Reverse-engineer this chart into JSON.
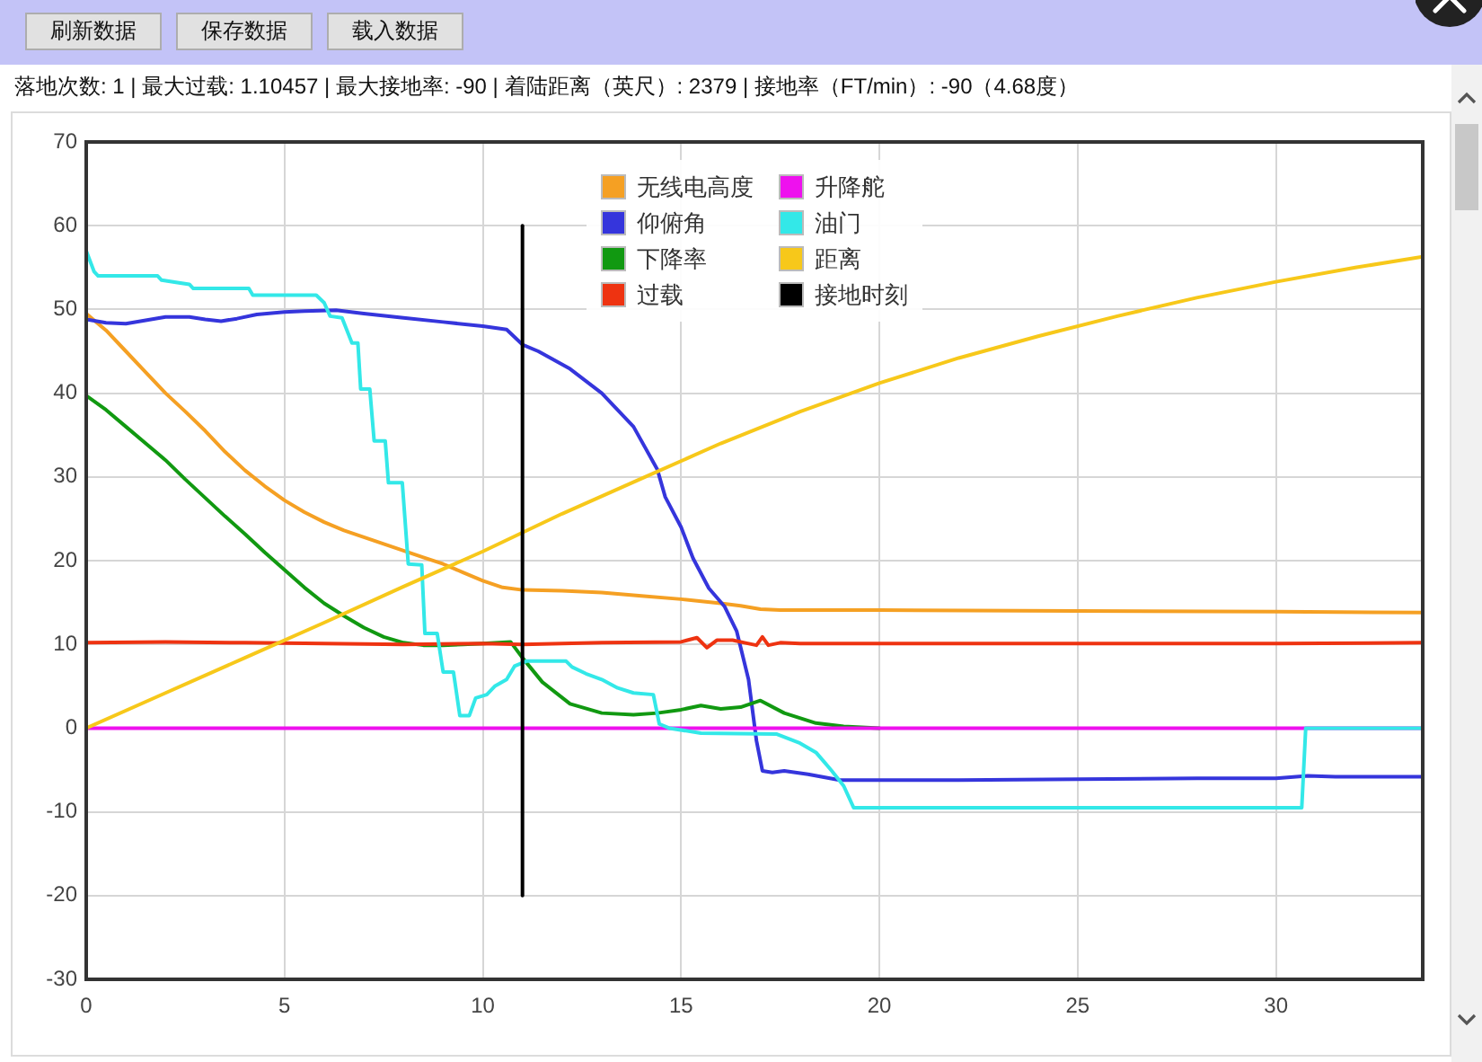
{
  "chart_data": {
    "type": "line",
    "title": "落地次数: 1 | 最大过载: 1.10457 | 最大接地率: -90 | 着陆距离（英尺）: 2379 | 接地率（FT/min）: -90（4.68度）",
    "annotations": [
      "刷新数据",
      "保存数据",
      "载入数据"
    ],
    "xlim": [
      0,
      33.7
    ],
    "xticks": [
      0,
      5,
      10,
      15,
      20,
      25,
      30
    ],
    "ylim": [
      -30,
      70
    ],
    "yticks": [
      -30,
      -20,
      -10,
      0,
      10,
      20,
      30,
      40,
      50,
      60,
      70
    ],
    "grid": true,
    "legend": "top",
    "marker": "none",
    "series": [
      {
        "name": "无线电高度",
        "color": "#f5a023",
        "x": [
          0,
          0.5,
          1,
          1.5,
          2,
          2.5,
          3,
          3.5,
          4,
          4.5,
          5,
          5.5,
          6,
          6.5,
          7,
          7.5,
          8,
          8.5,
          9,
          9.5,
          10,
          10.5,
          11,
          12,
          13,
          14,
          15,
          16,
          16.5,
          17,
          17.5,
          20,
          25,
          30,
          33.7
        ],
        "values": [
          49.5,
          47.5,
          45,
          42.5,
          40,
          37.8,
          35.5,
          33,
          30.8,
          28.9,
          27.2,
          25.8,
          24.6,
          23.6,
          22.8,
          22,
          21.2,
          20.4,
          19.6,
          18.6,
          17.6,
          16.8,
          16.5,
          16.4,
          16.2,
          15.8,
          15.4,
          14.9,
          14.6,
          14.2,
          14.1,
          14.1,
          14,
          13.9,
          13.8
        ]
      },
      {
        "name": "仰俯角",
        "color": "#3535dc",
        "x": [
          0,
          0.5,
          1,
          1.5,
          2,
          2.6,
          3,
          3.4,
          3.8,
          4.3,
          5,
          5.5,
          6.3,
          7,
          8,
          9,
          10,
          10.6,
          11,
          11.4,
          12.2,
          13,
          13.3,
          13.8,
          14.4,
          14.6,
          15,
          15.3,
          15.7,
          16.1,
          16.4,
          16.7,
          16.9,
          17.05,
          17.3,
          17.6,
          18.2,
          19,
          20,
          22,
          25,
          28,
          30,
          30.8,
          31.5,
          33.7
        ],
        "values": [
          48.8,
          48.4,
          48.3,
          48.7,
          49.1,
          49.1,
          48.8,
          48.6,
          48.9,
          49.4,
          49.7,
          49.8,
          49.9,
          49.5,
          49,
          48.5,
          48,
          47.6,
          45.8,
          45,
          42.9,
          40,
          38.5,
          36,
          30.9,
          27.6,
          24,
          20.3,
          16.7,
          14.5,
          11.6,
          5.8,
          -1.5,
          -5.1,
          -5.3,
          -5.1,
          -5.5,
          -6.2,
          -6.2,
          -6.2,
          -6.1,
          -6,
          -6,
          -5.7,
          -5.8,
          -5.8
        ]
      },
      {
        "name": "下降率",
        "color": "#119911",
        "x": [
          0,
          0.5,
          1,
          1.5,
          2,
          2.5,
          3,
          3.5,
          4,
          4.5,
          5,
          5.5,
          6,
          6.5,
          7,
          7.5,
          8,
          8.5,
          9,
          9.5,
          10,
          10.7,
          11,
          11.5,
          12.2,
          13,
          13.8,
          14.4,
          15,
          15.5,
          16,
          16.5,
          17,
          17.6,
          18.4,
          19.1,
          20
        ],
        "values": [
          39.7,
          38,
          36,
          34,
          32,
          29.7,
          27.5,
          25.3,
          23.2,
          21,
          18.9,
          16.8,
          14.9,
          13.4,
          12,
          10.9,
          10.2,
          9.9,
          9.9,
          10,
          10.1,
          10.3,
          8.4,
          5.5,
          2.9,
          1.8,
          1.6,
          1.8,
          2.2,
          2.7,
          2.3,
          2.5,
          3.3,
          1.8,
          0.6,
          0.2,
          0
        ]
      },
      {
        "name": "过载",
        "color": "#ee3311",
        "x": [
          0,
          2,
          4,
          6,
          8,
          10,
          11,
          13,
          15,
          15.4,
          15.65,
          15.9,
          16.3,
          16.6,
          16.9,
          17.05,
          17.2,
          17.5,
          18,
          20,
          25,
          30,
          33.7
        ],
        "values": [
          10.2,
          10.3,
          10.2,
          10.1,
          10,
          10.1,
          10,
          10.2,
          10.3,
          10.8,
          9.6,
          10.5,
          10.5,
          10.2,
          9.9,
          10.9,
          9.9,
          10.2,
          10.1,
          10.1,
          10.1,
          10.1,
          10.2
        ]
      },
      {
        "name": "升降舵",
        "color": "#ee11ee",
        "x": [
          0,
          33.7
        ],
        "values": [
          0,
          0
        ]
      },
      {
        "name": "油门",
        "color": "#33e8e8",
        "x": [
          0,
          0.2,
          0.3,
          1.8,
          1.9,
          2.3,
          2.6,
          2.7,
          4.1,
          4.2,
          5.8,
          6,
          6.15,
          6.45,
          6.7,
          6.85,
          6.92,
          7.15,
          7.26,
          7.54,
          7.62,
          7.97,
          8.12,
          8.46,
          8.54,
          8.85,
          9,
          9.26,
          9.42,
          9.66,
          9.82,
          10.1,
          10.3,
          10.6,
          10.8,
          11.1,
          12.1,
          12.25,
          12.6,
          13,
          13.4,
          13.8,
          14.3,
          14.45,
          14.7,
          15.5,
          17.4,
          18,
          18.4,
          18.6,
          18.8,
          19.1,
          19.35,
          30.65,
          30.75,
          33.7
        ],
        "values": [
          57,
          54.5,
          54,
          54,
          53.5,
          53.2,
          53,
          52.5,
          52.5,
          51.7,
          51.7,
          50.8,
          49.2,
          49,
          46,
          46,
          40.5,
          40.5,
          34.3,
          34.3,
          29.3,
          29.3,
          19.6,
          19.5,
          11.3,
          11.3,
          6.7,
          6.7,
          1.5,
          1.5,
          3.6,
          4,
          5,
          5.8,
          7.4,
          8,
          8,
          7.3,
          6.5,
          5.8,
          4.8,
          4.2,
          4,
          0.5,
          0,
          -0.6,
          -0.7,
          -1.8,
          -2.9,
          -4,
          -5.1,
          -6.9,
          -9.5,
          -9.5,
          0,
          0
        ]
      },
      {
        "name": "距离",
        "color": "#f7c81a",
        "x": [
          0,
          2,
          4,
          6,
          8,
          10,
          12,
          14,
          16,
          18,
          20,
          22,
          24,
          26,
          28,
          30,
          32,
          33.7
        ],
        "values": [
          0,
          4.2,
          8.4,
          12.6,
          16.9,
          21.1,
          25.6,
          29.8,
          34,
          37.8,
          41.2,
          44.2,
          46.8,
          49.2,
          51.4,
          53.3,
          55,
          56.3
        ]
      },
      {
        "name": "接地时刻",
        "color": "#000000",
        "x": [
          11,
          11
        ],
        "values": [
          -20,
          60
        ]
      }
    ]
  }
}
